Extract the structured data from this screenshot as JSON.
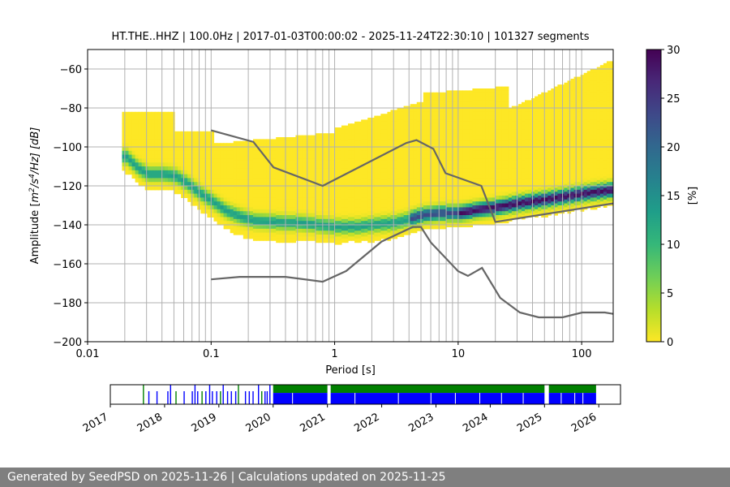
{
  "chart_data": {
    "type": "heatmap",
    "title": "HT.THE..HHZ | 100.0Hz | 2017-01-03T00:00:02 - 2025-11-24T22:30:10 | 101327 segments",
    "xlabel": "Period [s]",
    "ylabel": "Amplitude [m²/s⁴/Hz] [dB]",
    "ylabel_parts": {
      "pre": "Amplitude [",
      "unit": "m",
      "exp1": "2",
      "mid": "/s",
      "exp2": "4",
      "post": "/Hz] [dB]"
    },
    "x_scale": "log",
    "xlim": [
      0.01,
      180
    ],
    "ylim": [
      -200,
      -50
    ],
    "x_ticks": [
      {
        "value": 0.01,
        "label": "0.01"
      },
      {
        "value": 0.1,
        "label": "0.1"
      },
      {
        "value": 1,
        "label": "1"
      },
      {
        "value": 10,
        "label": "10"
      },
      {
        "value": 100,
        "label": "100"
      }
    ],
    "y_ticks": [
      {
        "value": -60,
        "label": "−60"
      },
      {
        "value": -80,
        "label": "−80"
      },
      {
        "value": -100,
        "label": "−100"
      },
      {
        "value": -120,
        "label": "−120"
      },
      {
        "value": -140,
        "label": "−140"
      },
      {
        "value": -160,
        "label": "−160"
      },
      {
        "value": -180,
        "label": "−180"
      },
      {
        "value": -200,
        "label": "−200"
      }
    ],
    "grid_periods": [
      0.02,
      0.03,
      0.04,
      0.05,
      0.06,
      0.07,
      0.08,
      0.09,
      0.1,
      0.2,
      0.3,
      0.4,
      0.5,
      0.6,
      0.7,
      0.8,
      0.9,
      1,
      2,
      3,
      4,
      5,
      6,
      7,
      8,
      9,
      10,
      20,
      30,
      40,
      50,
      60,
      70,
      80,
      90,
      100
    ],
    "colorbar": {
      "label": "[%]",
      "range": [
        0,
        30
      ],
      "ticks": [
        {
          "value": 0,
          "label": "0"
        },
        {
          "value": 5,
          "label": "5"
        },
        {
          "value": 10,
          "label": "10"
        },
        {
          "value": 15,
          "label": "15"
        },
        {
          "value": 20,
          "label": "20"
        },
        {
          "value": 25,
          "label": "25"
        },
        {
          "value": 30,
          "label": "30"
        }
      ],
      "colors": [
        "#fde725",
        "#b5de2b",
        "#6ece58",
        "#35b779",
        "#1f9e89",
        "#26828e",
        "#31688e",
        "#3e4989",
        "#482878",
        "#440154"
      ]
    },
    "nlnm": {
      "name": "NLNM",
      "periods": [
        0.1,
        0.17,
        0.4,
        0.8,
        1.24,
        2.4,
        4.3,
        5,
        6,
        10,
        12,
        15.6,
        21.9,
        31.6,
        45,
        70,
        101,
        154,
        180
      ],
      "db": [
        -168,
        -166.7,
        -166.7,
        -169.2,
        -163.7,
        -148.6,
        -141.1,
        -141.1,
        -149,
        -163.8,
        -166.2,
        -162.1,
        -177.5,
        -185,
        -187.5,
        -187.5,
        -185,
        -185,
        -185.7
      ]
    },
    "nhnm": {
      "name": "NHNM",
      "periods": [
        0.1,
        0.22,
        0.32,
        0.8,
        3.8,
        4.6,
        6.3,
        7.9,
        15.4,
        20,
        180
      ],
      "db": [
        -91.5,
        -97.4,
        -110.5,
        -120,
        -98,
        -96.5,
        -101,
        -113.5,
        -120,
        -138.5,
        -129
      ]
    },
    "mode_curve": {
      "periods": [
        0.02,
        0.025,
        0.03,
        0.04,
        0.05,
        0.06,
        0.08,
        0.1,
        0.13,
        0.17,
        0.22,
        0.3,
        0.4,
        0.5,
        0.7,
        1,
        1.5,
        2,
        3,
        4,
        5,
        7,
        10,
        15,
        20,
        30,
        50,
        100,
        180
      ],
      "db": [
        -104,
        -110,
        -113,
        -113,
        -114,
        -117,
        -123,
        -127,
        -132,
        -135,
        -137,
        -137.5,
        -138,
        -138,
        -139,
        -140,
        -140,
        -139,
        -138,
        -136,
        -134,
        -133,
        -133,
        -131,
        -130,
        -128,
        -126,
        -123,
        -121
      ]
    },
    "timeline": {
      "start_year": 2017.0,
      "end_year": 2026.4,
      "years": [
        "2017",
        "2018",
        "2019",
        "2020",
        "2021",
        "2022",
        "2023",
        "2024",
        "2025",
        "2026"
      ],
      "series": [
        {
          "name": "gaps",
          "color": "#008000"
        },
        {
          "name": "data",
          "color": "#0000ff"
        }
      ],
      "data_dense_from": 2020.0,
      "data_dense_to": 2025.95,
      "sparse_ticks": [
        2017.6,
        2017.7,
        2017.85,
        2018.05,
        2018.1,
        2018.2,
        2018.35,
        2018.5,
        2018.55,
        2018.6,
        2018.68,
        2018.75,
        2018.82,
        2018.87,
        2018.95,
        2019.02,
        2019.07,
        2019.15,
        2019.22,
        2019.3,
        2019.35,
        2019.48,
        2019.55,
        2019.62,
        2019.72,
        2019.78,
        2019.84,
        2019.88,
        2019.93
      ],
      "gaps": [
        [
          2021.0,
          2021.06
        ],
        [
          2025.0,
          2025.08
        ]
      ]
    }
  },
  "footer": {
    "text": "Generated by SeedPSD on 2025-11-26 | Calculations updated on 2025-11-25"
  }
}
